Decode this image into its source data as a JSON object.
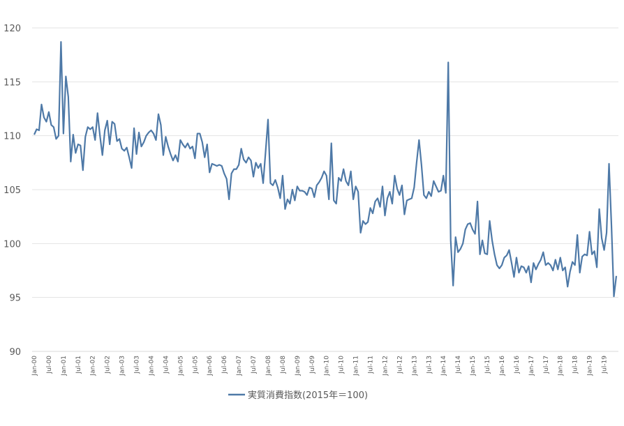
{
  "chart_data": {
    "type": "line",
    "title": "",
    "xlabel": "",
    "ylabel": "",
    "ylim": [
      90,
      120
    ],
    "yticks": [
      90,
      95,
      100,
      105,
      110,
      115,
      120
    ],
    "grid": true,
    "legend_position": "bottom",
    "x_start": "Jan-00",
    "x_tick_labels": [
      "Jan-00",
      "Jul-00",
      "Jan-01",
      "Jul-01",
      "Jan-02",
      "Jul-02",
      "Jan-03",
      "Jul-03",
      "Jan-04",
      "Jul-04",
      "Jan-05",
      "Jul-05",
      "Jan-06",
      "Jul-06",
      "Jan-07",
      "Jul-07",
      "Jan-08",
      "Jul-08",
      "Jan-09",
      "Jul-09",
      "Jan-10",
      "Jul-10",
      "Jan-11",
      "Jul-11",
      "Jan-12",
      "Jul-12",
      "Jan-13",
      "Jul-13",
      "Jan-14",
      "Jul-14",
      "Jan-15",
      "Jul-15",
      "Jan-16",
      "Jul-16",
      "Jan-17",
      "Jul-17",
      "Jan-18",
      "Jul-18",
      "Jan-19",
      "Jul-19"
    ],
    "series": [
      {
        "name": "実質消費指数(2015年＝100)",
        "color": "#4e79a7",
        "values": [
          110.1,
          110.6,
          110.5,
          112.9,
          111.7,
          111.3,
          112.2,
          111.0,
          110.8,
          109.7,
          110.0,
          118.7,
          110.2,
          115.5,
          113.6,
          107.6,
          110.1,
          108.4,
          109.2,
          109.1,
          106.8,
          109.9,
          110.8,
          110.6,
          110.8,
          109.6,
          112.1,
          110.0,
          108.2,
          110.5,
          111.4,
          109.2,
          111.3,
          111.1,
          109.5,
          109.7,
          108.8,
          108.6,
          108.9,
          108.0,
          107.0,
          110.7,
          108.3,
          110.3,
          109.0,
          109.4,
          110.0,
          110.3,
          110.5,
          110.2,
          109.6,
          112.0,
          111.0,
          108.2,
          109.9,
          109.0,
          108.3,
          107.7,
          108.2,
          107.6,
          109.6,
          109.2,
          108.9,
          109.3,
          108.8,
          109.0,
          107.9,
          110.2,
          110.2,
          109.4,
          108.0,
          109.2,
          106.6,
          107.4,
          107.3,
          107.2,
          107.3,
          107.2,
          106.5,
          106.0,
          104.1,
          106.5,
          106.9,
          106.9,
          107.3,
          108.8,
          107.8,
          107.5,
          108.0,
          107.7,
          106.2,
          107.5,
          107.0,
          107.4,
          105.6,
          108.5,
          111.5,
          105.6,
          105.4,
          105.9,
          105.2,
          104.2,
          106.3,
          103.2,
          104.1,
          103.7,
          105.0,
          104.0,
          105.3,
          104.9,
          104.9,
          104.8,
          104.5,
          105.2,
          105.1,
          104.3,
          105.4,
          105.7,
          106.1,
          106.7,
          106.3,
          104.1,
          109.3,
          104.0,
          103.7,
          106.1,
          105.8,
          106.9,
          105.8,
          105.4,
          106.7,
          104.1,
          105.3,
          104.8,
          101.0,
          102.1,
          101.8,
          102.0,
          103.3,
          102.8,
          103.9,
          104.2,
          103.4,
          105.3,
          102.6,
          104.2,
          104.8,
          103.7,
          106.3,
          105.1,
          104.5,
          105.4,
          102.7,
          104.0,
          104.1,
          104.2,
          105.2,
          107.5,
          109.6,
          107.3,
          104.5,
          104.2,
          104.8,
          104.4,
          105.8,
          105.3,
          104.8,
          104.9,
          106.3,
          104.7,
          116.8,
          100.3,
          96.1,
          100.6,
          99.2,
          99.5,
          100.0,
          101.3,
          101.8,
          101.9,
          101.3,
          100.9,
          103.9,
          99.0,
          100.3,
          99.1,
          99.0,
          102.1,
          100.3,
          99.0,
          98.0,
          97.7,
          98.0,
          98.7,
          98.9,
          99.4,
          98.2,
          96.9,
          98.7,
          97.3,
          97.9,
          97.8,
          97.3,
          97.9,
          96.4,
          98.2,
          97.6,
          98.1,
          98.5,
          99.2,
          98.0,
          98.2,
          98.0,
          97.5,
          98.5,
          97.6,
          98.7,
          97.5,
          97.8,
          96.0,
          97.4,
          98.3,
          98.0,
          100.8,
          97.3,
          98.8,
          99.0,
          98.9,
          101.1,
          99.0,
          99.3,
          97.8,
          103.2,
          100.5,
          99.4,
          101.0,
          107.4,
          101.7,
          95.1,
          97.0
        ]
      }
    ]
  }
}
